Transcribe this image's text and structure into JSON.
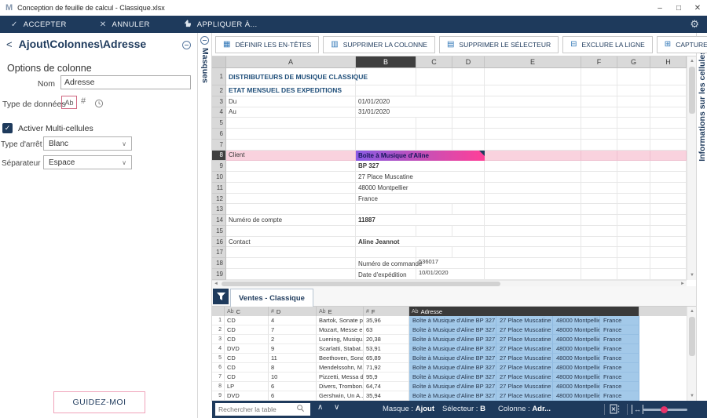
{
  "window": {
    "title": "Conception de feuille de calcul - Classique.xlsx"
  },
  "icons": {
    "app": "M",
    "minimize": "–",
    "maximize": "□",
    "close_win": "✕",
    "check": "✓",
    "close": "✕",
    "gear": "⚙",
    "back": "<",
    "chevron_up": "∧",
    "chevron_down": "∨",
    "dropdown": "∨",
    "scroll_up": "▲",
    "scroll_down": "▼",
    "scroll_left": "◄",
    "scroll_right": "►"
  },
  "action_bar": {
    "accept": "ACCEPTER",
    "cancel": "ANNULER",
    "apply": "APPLIQUER À..."
  },
  "panel": {
    "breadcrumb": "Ajout\\Colonnes\\Adresse",
    "section_title": "Options de colonne",
    "name_label": "Nom",
    "name_value": "Adresse",
    "datatype_label": "Type de données",
    "datatype_text": "Ab",
    "datatype_number": "#",
    "multicell_label": "Activer Multi-cellules",
    "multicell_checked": true,
    "stop_label": "Type d'arrêt",
    "stop_value": "Blanc",
    "separator_label": "Séparateur",
    "separator_value": "Espace",
    "guide_button": "GUIDEZ-MOI"
  },
  "masks_tab": {
    "label": "Masques"
  },
  "cells_tab": {
    "label": "Informations sur les cellules"
  },
  "toolbar": {
    "buttons": [
      {
        "icon": "▦",
        "label": "DÉFINIR LES EN-TÊTES"
      },
      {
        "icon": "▥",
        "label": "SUPPRIMER LA COLONNE"
      },
      {
        "icon": "▤",
        "label": "SUPPRIMER LE SÉLECTEUR"
      },
      {
        "icon": "⊟",
        "label": "EXCLURE LA LIGNE"
      },
      {
        "icon": "⊞",
        "label": "CAPTURER CES DONNÉES SOUS"
      }
    ]
  },
  "spreadsheet": {
    "columns": [
      "A",
      "B",
      "C",
      "D",
      "E",
      "F",
      "G",
      "H"
    ],
    "selected_column": "B",
    "rows": [
      {
        "n": "1",
        "cells": {
          "A": {
            "t": "DISTRIBUTEURS DE MUSIQUE CLASSIQUE",
            "cls": "blue"
          }
        }
      },
      {
        "n": "2",
        "cells": {
          "A": {
            "t": "ETAT MENSUEL DES EXPEDITIONS",
            "cls": "blue"
          }
        }
      },
      {
        "n": "3",
        "cells": {
          "A": {
            "t": "Du"
          },
          "B": {
            "t": "01/01/2020",
            "span": 2
          }
        }
      },
      {
        "n": "4",
        "cells": {
          "A": {
            "t": "Au"
          },
          "B": {
            "t": "31/01/2020",
            "span": 2
          }
        }
      },
      {
        "n": "5"
      },
      {
        "n": "6"
      },
      {
        "n": "7"
      },
      {
        "n": "8",
        "hl": true,
        "cells": {
          "A": {
            "t": "Client"
          }
        },
        "selection": {
          "t": "Boîte à Musique d'Aline"
        }
      },
      {
        "n": "9",
        "cells": {
          "B": {
            "t": "BP 327",
            "cls": "b",
            "span": 3
          }
        }
      },
      {
        "n": "10",
        "cells": {
          "B": {
            "t": "27 Place Muscatine",
            "span": 3
          }
        }
      },
      {
        "n": "11",
        "cells": {
          "B": {
            "t": "48000 Montpellier",
            "span": 3
          }
        }
      },
      {
        "n": "12",
        "cells": {
          "B": {
            "t": "France",
            "span": 3
          }
        }
      },
      {
        "n": "13"
      },
      {
        "n": "14",
        "cells": {
          "A": {
            "t": "Numéro de compte"
          },
          "B": {
            "t": "11887",
            "cls": "b",
            "span": 3
          }
        }
      },
      {
        "n": "15"
      },
      {
        "n": "16",
        "cells": {
          "A": {
            "t": "Contact"
          },
          "B": {
            "t": "Aline Jeannot",
            "cls": "b",
            "span": 3
          }
        }
      },
      {
        "n": "17"
      },
      {
        "n": "18",
        "cells": {
          "B": {
            "t": "Numéro de commande",
            "cls": "vb"
          },
          "C": {
            "t": "536017",
            "cls": "vt",
            "span": 2
          }
        }
      },
      {
        "n": "19",
        "cells": {
          "B": {
            "t": "Date d'expédition",
            "cls": "vb clip"
          },
          "C": {
            "t": "10/01/2020",
            "cls": "vt",
            "span": 2
          }
        }
      }
    ]
  },
  "preview": {
    "tab_label": "Ventes - Classique",
    "headers": [
      {
        "type": "Ab",
        "letter": "C"
      },
      {
        "type": "#",
        "letter": "D"
      },
      {
        "type": "Ab",
        "letter": "E"
      },
      {
        "type": "#",
        "letter": "F"
      }
    ],
    "address_header": {
      "type": "Ab",
      "letter": "Adresse"
    },
    "rows": [
      {
        "n": "1",
        "media": "CD",
        "qty": "4",
        "title": "Bartok, Sonate p...",
        "price": "35,96"
      },
      {
        "n": "2",
        "media": "CD",
        "qty": "7",
        "title": "Mozart, Messe e...",
        "price": "63"
      },
      {
        "n": "3",
        "media": "CD",
        "qty": "2",
        "title": "Luening, Musiqu...",
        "price": "20,38"
      },
      {
        "n": "4",
        "media": "DVD",
        "qty": "9",
        "title": "Scarlatti, Stabat...",
        "price": "53,91"
      },
      {
        "n": "5",
        "media": "CD",
        "qty": "11",
        "title": "Beethoven, Sona...",
        "price": "65,89"
      },
      {
        "n": "6",
        "media": "CD",
        "qty": "8",
        "title": "Mendelssohn, M...",
        "price": "71,92"
      },
      {
        "n": "7",
        "media": "CD",
        "qty": "10",
        "title": "Pizzetti, Messa di...",
        "price": "95,9"
      },
      {
        "n": "8",
        "media": "LP",
        "qty": "6",
        "title": "Divers, Trombon...",
        "price": "64,74"
      },
      {
        "n": "9",
        "media": "DVD",
        "qty": "6",
        "title": "Gershwin, Un A...",
        "price": "35,94"
      }
    ],
    "address_parts": [
      "Boîte à Musique d'Aline BP 327",
      "27 Place Muscatine",
      "48000 Montpellier",
      "France"
    ]
  },
  "status_bar": {
    "search_placeholder": "Rechercher la table",
    "mask_label": "Masque :",
    "mask_value": "Ajout",
    "selector_label": "Sélecteur :",
    "selector_value": "B",
    "column_label": "Colonne :",
    "column_value": "Adr..."
  },
  "colors": {
    "navy": "#1e3a5c",
    "accent_pink": "#e84a7a",
    "row_highlight": "#f9d2de",
    "selection_gradient_start": "#8a5be4",
    "selection_gradient_end": "#ff3f98",
    "address_blue": "#a3c9e9",
    "selected_header": "#3f3f3f",
    "sheet_blue_text": "#1f4e79"
  }
}
